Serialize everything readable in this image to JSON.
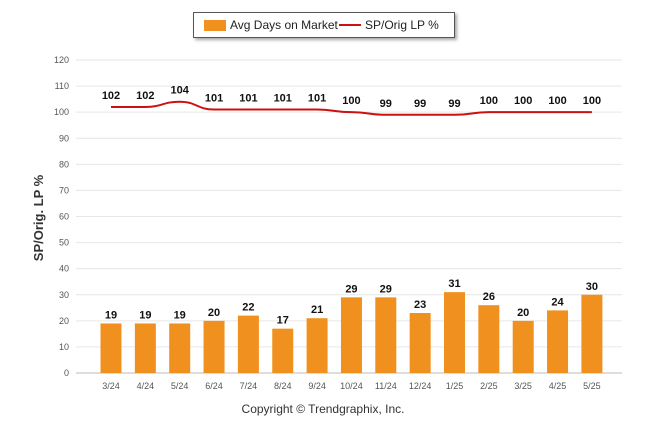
{
  "chart_data": {
    "type": "bar",
    "categories": [
      "3/24",
      "4/24",
      "5/24",
      "6/24",
      "7/24",
      "8/24",
      "9/24",
      "10/24",
      "11/24",
      "12/24",
      "1/25",
      "2/25",
      "3/25",
      "4/25",
      "5/25"
    ],
    "series": [
      {
        "name": "Avg Days on Market",
        "type": "bar",
        "color": "#f0901e",
        "values": [
          19,
          19,
          19,
          20,
          22,
          17,
          21,
          29,
          29,
          23,
          31,
          26,
          20,
          24,
          30
        ]
      },
      {
        "name": "SP/Orig LP %",
        "type": "line",
        "color": "#cc1111",
        "values": [
          102,
          102,
          104,
          101,
          101,
          101,
          101,
          100,
          99,
          99,
          99,
          100,
          100,
          100,
          100
        ]
      }
    ],
    "ylabel": "SP/Orig. LP %",
    "ylim": [
      0,
      120
    ],
    "yticks": [
      0,
      10,
      20,
      30,
      40,
      50,
      60,
      70,
      80,
      90,
      100,
      110,
      120
    ],
    "grid": true,
    "legend_position": "top-center"
  },
  "footer": {
    "copyright": "Copyright © Trendgraphix, Inc."
  }
}
